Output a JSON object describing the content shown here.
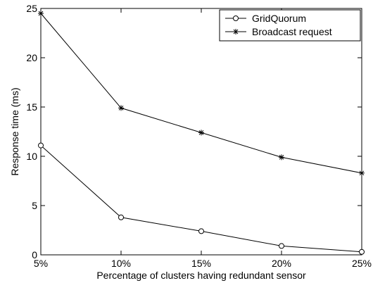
{
  "chart_data": {
    "type": "line",
    "title": "",
    "xlabel": "Percentage of clusters having redundant sensor",
    "ylabel": "Response time (ms)",
    "categories": [
      "5%",
      "10%",
      "15%",
      "20%",
      "25%"
    ],
    "x": [
      5,
      10,
      15,
      20,
      25
    ],
    "xlim": [
      5,
      25
    ],
    "ylim": [
      0,
      25
    ],
    "yticks": [
      0,
      5,
      10,
      15,
      20,
      25
    ],
    "grid": false,
    "legend_position": "top-right",
    "series": [
      {
        "name": "GridQuorum",
        "marker": "circle",
        "color": "#000000",
        "values": [
          11.1,
          3.8,
          2.4,
          0.9,
          0.3
        ]
      },
      {
        "name": "Broadcast request",
        "marker": "asterisk",
        "color": "#000000",
        "values": [
          24.5,
          14.9,
          12.4,
          9.9,
          8.3
        ]
      }
    ]
  }
}
